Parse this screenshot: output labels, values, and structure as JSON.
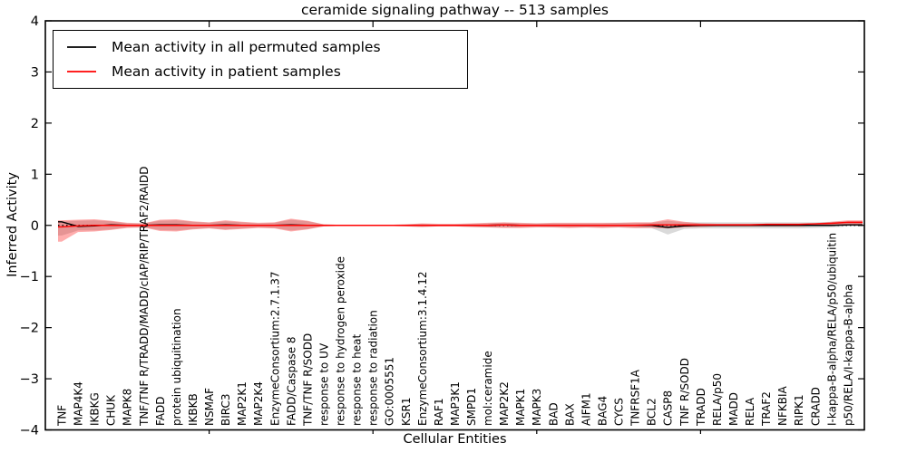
{
  "figure": {
    "title": "ceramide signaling pathway -- 513 samples",
    "xlabel": "Cellular Entities",
    "ylabel": "Inferred Activity"
  },
  "legend": {
    "entries": [
      {
        "label": "Mean activity in all permuted samples",
        "color": "#000000"
      },
      {
        "label": "Mean activity in patient samples",
        "color": "#ff0000"
      }
    ]
  },
  "chart_data": {
    "type": "line",
    "title": "ceramide signaling pathway -- 513 samples",
    "xlabel": "Cellular Entities",
    "ylabel": "Inferred Activity",
    "ylim": [
      -4,
      4
    ],
    "yticks": [
      4,
      3,
      2,
      1,
      0,
      -1,
      -2,
      -3,
      -4
    ],
    "xticks_major": [
      10,
      20,
      30,
      40
    ],
    "grid": false,
    "legend_position": "upper left",
    "zero_line": 0,
    "categories": [
      "TNF",
      "MAP4K4",
      "IKBKG",
      "CHUK",
      "MAPK8",
      "TNF/TNF R/TRADD/MADD/cIAP/RIP/TRAF2/RAIDD",
      "FADD",
      "protein ubiquitination",
      "IKBKB",
      "NSMAF",
      "BIRC3",
      "MAP2K1",
      "MAP2K4",
      "EnzymeConsortium:2.7.1.37",
      "FADD/Caspase 8",
      "TNF/TNF R/SODD",
      "response to UV",
      "response to hydrogen peroxide",
      "response to heat",
      "response to radiation",
      "GO:0005551",
      "KSR1",
      "EnzymeConsortium:3.1.4.12",
      "RAF1",
      "MAP3K1",
      "SMPD1",
      "mol:ceramide",
      "MAP2K2",
      "MAPK1",
      "MAPK3",
      "BAD",
      "BAX",
      "AIFM1",
      "BAG4",
      "CYCS",
      "TNFRSF1A",
      "BCL2",
      "CASP8",
      "TNF R/SODD",
      "TRADD",
      "RELA/p50",
      "MADD",
      "RELA",
      "TRAF2",
      "NFKBIA",
      "RIPK1",
      "CRADD",
      "I-kappa-B-alpha/RELA/p50/ubiquitin",
      "p50/RELA/I-kappa-B-alpha"
    ],
    "series": [
      {
        "name": "Mean activity in all permuted samples",
        "color": "#000000",
        "values": [
          0.07,
          -0.02,
          -0.01,
          0.01,
          0,
          0,
          0.01,
          0.01,
          0,
          0,
          0.01,
          0,
          0,
          0,
          0.01,
          0,
          0,
          0,
          0,
          0,
          0,
          0,
          0,
          0,
          0,
          0,
          0,
          0.01,
          0,
          0,
          0,
          0,
          0,
          0,
          0,
          0,
          0,
          -0.04,
          -0.01,
          0,
          0,
          0,
          0,
          0,
          0,
          0,
          0,
          0,
          0.01
        ]
      },
      {
        "name": "Mean activity in patient samples",
        "color": "#ff0000",
        "values": [
          -0.03,
          -0.01,
          0,
          0,
          0,
          0,
          0,
          0,
          0,
          0,
          0,
          0,
          0,
          0,
          0,
          0,
          0,
          0,
          0,
          0,
          0,
          0,
          0,
          0,
          0,
          0,
          0,
          0.01,
          0,
          0,
          0,
          0,
          0,
          0,
          0,
          0,
          0.01,
          0.01,
          0.01,
          0.01,
          0.01,
          0.01,
          0.01,
          0.02,
          0.02,
          0.02,
          0.03,
          0.04,
          0.06
        ]
      }
    ],
    "bands": [
      {
        "name": "permuted-envelope",
        "color": "#bbbbbb",
        "opacity": 0.55,
        "hi": [
          0.08,
          0.09,
          0.1,
          0.08,
          0.04,
          0.04,
          0.09,
          0.1,
          0.07,
          0.05,
          0.08,
          0.06,
          0.04,
          0.05,
          0.11,
          0.08,
          0.02,
          0.01,
          0.01,
          0.01,
          0.01,
          0.02,
          0.03,
          0.02,
          0.02,
          0.03,
          0.04,
          0.05,
          0.04,
          0.04,
          0.04,
          0.04,
          0.04,
          0.04,
          0.05,
          0.05,
          0.05,
          0.09,
          0.06,
          0.06,
          0.06,
          0.06,
          0.06,
          0.06,
          0.06,
          0.06,
          0.06,
          0.07,
          0.08
        ],
        "lo": [
          -0.2,
          -0.1,
          -0.1,
          -0.08,
          -0.04,
          -0.04,
          -0.09,
          -0.1,
          -0.07,
          -0.05,
          -0.08,
          -0.06,
          -0.04,
          -0.05,
          -0.1,
          -0.07,
          -0.02,
          -0.01,
          -0.01,
          -0.01,
          -0.01,
          -0.02,
          -0.03,
          -0.02,
          -0.02,
          -0.03,
          -0.04,
          -0.04,
          -0.04,
          -0.03,
          -0.04,
          -0.04,
          -0.04,
          -0.04,
          -0.04,
          -0.05,
          -0.05,
          -0.18,
          -0.07,
          -0.06,
          -0.06,
          -0.06,
          -0.06,
          -0.06,
          -0.06,
          -0.06,
          -0.05,
          -0.04,
          -0.02
        ]
      },
      {
        "name": "patient-envelope",
        "color": "#ff0000",
        "opacity": 0.32,
        "hi": [
          0.1,
          0.11,
          0.12,
          0.09,
          0.05,
          0.04,
          0.11,
          0.12,
          0.08,
          0.06,
          0.1,
          0.07,
          0.05,
          0.06,
          0.13,
          0.09,
          0.02,
          0.01,
          0.01,
          0.01,
          0.01,
          0.02,
          0.04,
          0.03,
          0.03,
          0.04,
          0.05,
          0.06,
          0.05,
          0.04,
          0.05,
          0.05,
          0.05,
          0.05,
          0.05,
          0.06,
          0.06,
          0.12,
          0.07,
          0.04,
          0.03,
          0.03,
          0.03,
          0.03,
          0.03,
          0.03,
          0.04,
          0.07,
          0.1
        ],
        "lo": [
          -0.32,
          -0.13,
          -0.12,
          -0.09,
          -0.05,
          -0.04,
          -0.11,
          -0.12,
          -0.08,
          -0.06,
          -0.09,
          -0.07,
          -0.05,
          -0.06,
          -0.12,
          -0.08,
          -0.02,
          -0.01,
          -0.01,
          -0.01,
          -0.01,
          -0.02,
          -0.03,
          -0.02,
          -0.02,
          -0.03,
          -0.04,
          -0.05,
          -0.05,
          -0.04,
          -0.04,
          -0.05,
          -0.04,
          -0.05,
          -0.04,
          -0.05,
          -0.05,
          -0.06,
          -0.04,
          -0.03,
          -0.02,
          -0.02,
          -0.02,
          -0.02,
          -0.02,
          -0.02,
          -0.01,
          0.0,
          0.01
        ]
      }
    ]
  }
}
